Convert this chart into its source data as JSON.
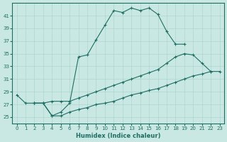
{
  "xlabel": "Humidex (Indice chaleur)",
  "xlim": [
    -0.5,
    23.5
  ],
  "ylim": [
    24,
    43
  ],
  "yticks": [
    25,
    27,
    29,
    31,
    33,
    35,
    37,
    39,
    41
  ],
  "xticks": [
    0,
    1,
    2,
    3,
    4,
    5,
    6,
    7,
    8,
    9,
    10,
    11,
    12,
    13,
    14,
    15,
    16,
    17,
    18,
    19,
    20,
    21,
    22,
    23
  ],
  "bg_color": "#c9e8e4",
  "line_color": "#1e6e62",
  "grid_color": "#aed4ce",
  "series": [
    {
      "x": [
        0,
        1,
        2,
        3,
        4,
        5,
        6,
        7,
        8,
        9,
        10,
        11,
        12,
        13,
        14,
        15,
        16,
        17,
        18,
        19
      ],
      "y": [
        28.5,
        27.2,
        27.2,
        27.2,
        25.2,
        25.8,
        27.2,
        34.5,
        34.8,
        37.2,
        39.5,
        41.8,
        41.5,
        42.2,
        41.8,
        42.2,
        41.2,
        38.5,
        36.5,
        36.5
      ]
    },
    {
      "x": [
        2,
        3,
        4,
        5,
        6,
        7,
        8,
        9,
        10,
        11,
        12,
        13,
        14,
        15,
        16,
        17,
        18,
        19,
        20,
        21,
        22
      ],
      "y": [
        27.2,
        27.2,
        27.5,
        27.5,
        27.5,
        28.0,
        28.5,
        29.0,
        29.5,
        30.0,
        30.5,
        31.0,
        31.5,
        32.0,
        32.5,
        33.5,
        34.5,
        35.0,
        34.8,
        33.5,
        32.2
      ]
    },
    {
      "x": [
        2,
        3,
        4,
        5,
        6,
        7,
        8,
        9,
        10,
        11,
        12,
        13,
        14,
        15,
        16,
        17,
        18,
        19,
        20,
        21,
        22,
        23
      ],
      "y": [
        27.2,
        27.2,
        25.2,
        25.2,
        25.8,
        26.2,
        26.5,
        27.0,
        27.2,
        27.5,
        28.0,
        28.5,
        28.8,
        29.2,
        29.5,
        30.0,
        30.5,
        31.0,
        31.5,
        31.8,
        32.2,
        32.2
      ]
    }
  ]
}
